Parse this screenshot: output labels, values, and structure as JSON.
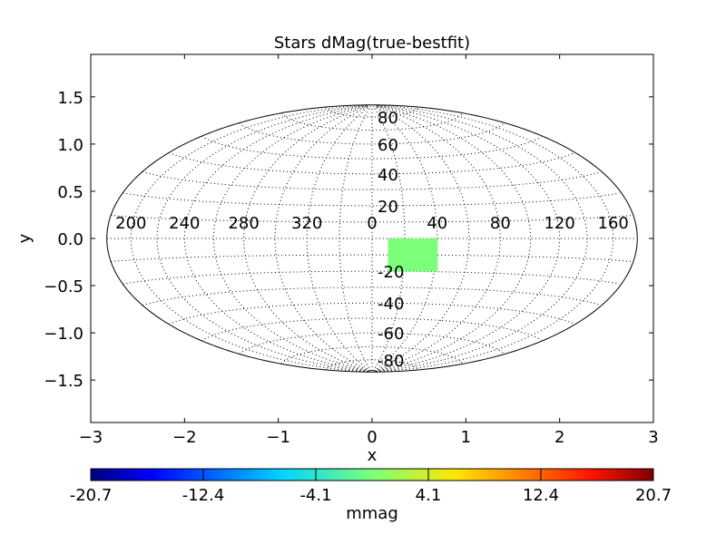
{
  "chart_data": {
    "type": "heatmap",
    "title": "Stars dMag(true-bestfit)",
    "xlabel": "x",
    "ylabel": "y",
    "xlim": [
      -3,
      3
    ],
    "ylim": [
      -1.95,
      1.95
    ],
    "x_ticks": [
      -3,
      -2,
      -1,
      0,
      1,
      2,
      3
    ],
    "x_tick_labels": [
      "−3",
      "−2",
      "−1",
      "0",
      "1",
      "2",
      "3"
    ],
    "y_ticks": [
      1.5,
      1.0,
      0.5,
      0.0,
      -0.5,
      -1.0,
      -1.5
    ],
    "y_tick_labels": [
      "1.5",
      "1.0",
      "0.5",
      "0.0",
      "−0.5",
      "−1.0",
      "−1.5"
    ],
    "projection": "hammer-aitoff",
    "grid": true,
    "meridians_deg": [
      200,
      240,
      280,
      320,
      0,
      40,
      80,
      120,
      160
    ],
    "meridian_labels": [
      "200",
      "240",
      "280",
      "320",
      "0",
      "40",
      "80",
      "120",
      "160"
    ],
    "parallels_deg": [
      80,
      60,
      40,
      20,
      -20,
      -40,
      -60,
      -80
    ],
    "parallel_labels": [
      "80",
      "60",
      "40",
      "20",
      "-20",
      "-40",
      "-60",
      "-80"
    ],
    "data_region": {
      "x_range": [
        0.17,
        0.7
      ],
      "y_range": [
        -0.35,
        0.0
      ],
      "value_mmag": 0.0,
      "color": "#7cff7a"
    },
    "colorbar": {
      "label": "mmag",
      "range": [
        -20.7,
        20.7
      ],
      "tick_labels": [
        "-20.7",
        "-12.4",
        "-4.1",
        "4.1",
        "12.4",
        "20.7"
      ],
      "colormap": "jet"
    }
  }
}
